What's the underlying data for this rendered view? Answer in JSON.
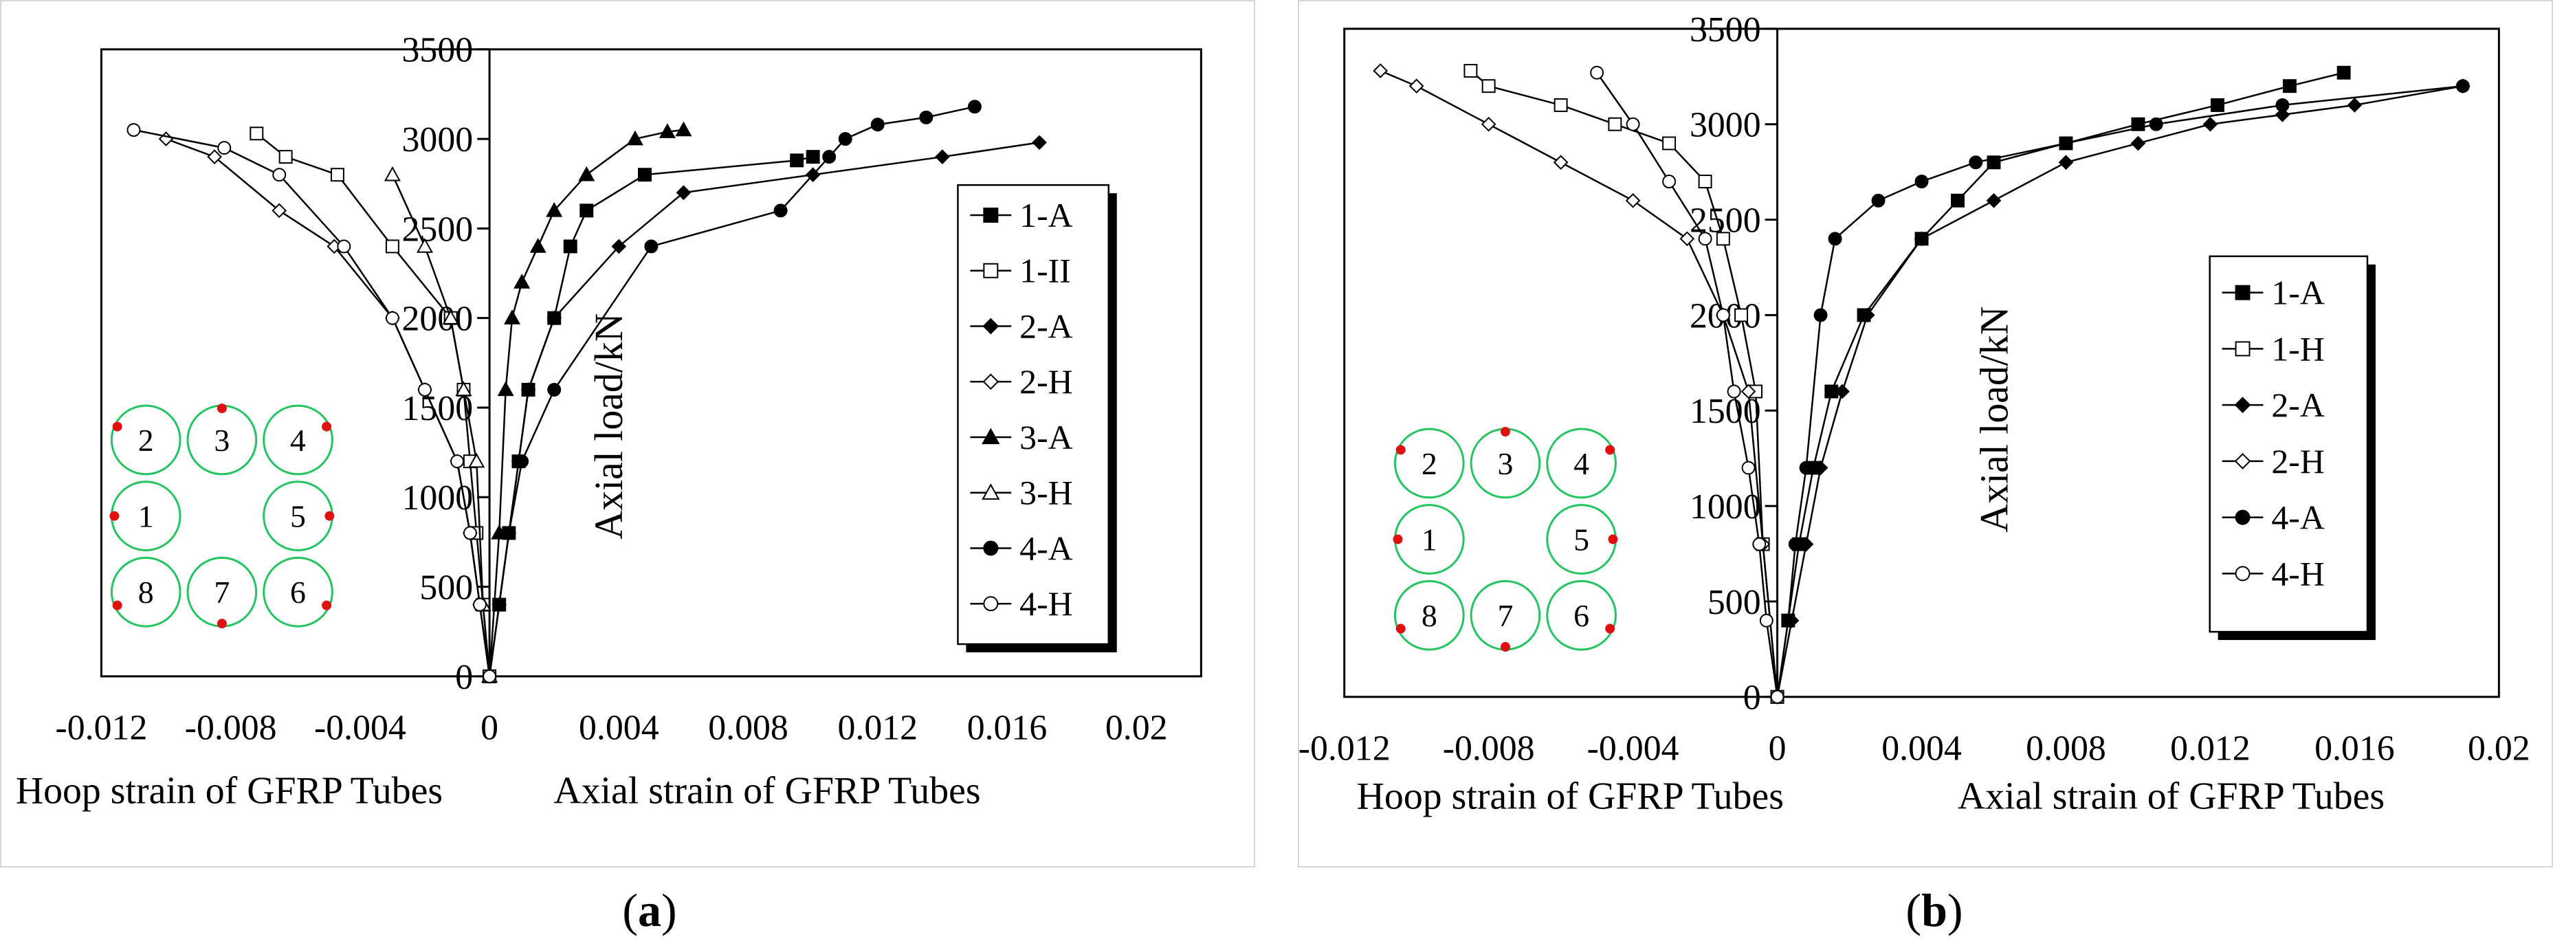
{
  "panels": [
    {
      "caption": "a"
    },
    {
      "caption": "b"
    }
  ],
  "chart_data": [
    {
      "type": "line",
      "ylabel": "Axial load/kN",
      "xlabel_left": "Hoop strain of GFRP Tubes",
      "xlabel_right": "Axial  strain of GFRP Tubes",
      "ylim": [
        0,
        3500
      ],
      "xlim": [
        -0.012,
        0.022
      ],
      "y_ticks": [
        "0",
        "500",
        "1000",
        "1500",
        "2000",
        "2500",
        "3000",
        "3500"
      ],
      "x_ticks": [
        "-0.012",
        "-0.008",
        "-0.004",
        "0",
        "0.004",
        "0.008",
        "0.012",
        "0.016",
        "0.02"
      ],
      "legend_position": "right",
      "grid": false,
      "section_labels": [
        "2",
        "3",
        "4",
        "1",
        "5",
        "8",
        "7",
        "6"
      ],
      "series": [
        {
          "name": "1-A",
          "marker": "square-filled",
          "x": [
            0,
            0.0003,
            0.0006,
            0.0009,
            0.0012,
            0.002,
            0.0025,
            0.003,
            0.0048,
            0.0095,
            0.01
          ],
          "y": [
            0,
            400,
            800,
            1200,
            1600,
            2000,
            2400,
            2600,
            2800,
            2880,
            2900
          ]
        },
        {
          "name": "1-II",
          "marker": "square-open",
          "x": [
            0,
            -0.0002,
            -0.0004,
            -0.0006,
            -0.0008,
            -0.0012,
            -0.003,
            -0.0047,
            -0.0063,
            -0.0072
          ],
          "y": [
            0,
            400,
            800,
            1200,
            1600,
            2000,
            2400,
            2800,
            2900,
            3030
          ]
        },
        {
          "name": "2-A",
          "marker": "diamond-filled",
          "x": [
            0,
            0.0003,
            0.0006,
            0.0009,
            0.0012,
            0.002,
            0.004,
            0.006,
            0.01,
            0.014,
            0.017
          ],
          "y": [
            0,
            400,
            800,
            1200,
            1600,
            2000,
            2400,
            2700,
            2800,
            2900,
            2980
          ]
        },
        {
          "name": "2-H",
          "marker": "diamond-open",
          "x": [
            0,
            -0.0003,
            -0.0006,
            -0.001,
            -0.002,
            -0.003,
            -0.0048,
            -0.0065,
            -0.0085,
            -0.01
          ],
          "y": [
            0,
            400,
            800,
            1200,
            1600,
            2000,
            2400,
            2600,
            2900,
            3000
          ]
        },
        {
          "name": "3-A",
          "marker": "triangle-filled",
          "x": [
            0,
            0.0003,
            0.0005,
            0.0007,
            0.001,
            0.0015,
            0.002,
            0.003,
            0.0045,
            0.0055,
            0.006
          ],
          "y": [
            0,
            800,
            1600,
            2000,
            2200,
            2400,
            2600,
            2800,
            3000,
            3040,
            3050
          ]
        },
        {
          "name": "3-H",
          "marker": "triangle-open",
          "x": [
            0,
            -0.0002,
            -0.0004,
            -0.0008,
            -0.0012,
            -0.002,
            -0.003
          ],
          "y": [
            0,
            400,
            1200,
            1600,
            2000,
            2400,
            2800
          ]
        },
        {
          "name": "4-A",
          "marker": "circle-filled",
          "x": [
            0,
            0.0003,
            0.0006,
            0.001,
            0.002,
            0.005,
            0.009,
            0.0105,
            0.011,
            0.012,
            0.0135,
            0.015
          ],
          "y": [
            0,
            400,
            800,
            1200,
            1600,
            2400,
            2600,
            2900,
            3000,
            3080,
            3120,
            3180
          ]
        },
        {
          "name": "4-H",
          "marker": "circle-open",
          "x": [
            0,
            -0.0003,
            -0.0006,
            -0.001,
            -0.002,
            -0.003,
            -0.0045,
            -0.0065,
            -0.0082,
            -0.011
          ],
          "y": [
            0,
            400,
            800,
            1200,
            1600,
            2000,
            2400,
            2800,
            2950,
            3050
          ]
        }
      ]
    },
    {
      "type": "line",
      "ylabel": "Axial load/kN",
      "xlabel_left": "Hoop strain of GFRP Tubes",
      "xlabel_right": "Axial strain of GFRP Tubes",
      "ylim": [
        0,
        3500
      ],
      "xlim": [
        -0.012,
        0.02
      ],
      "y_ticks": [
        "0",
        "500",
        "1000",
        "1500",
        "2000",
        "2500",
        "3000",
        "3500"
      ],
      "x_ticks": [
        "-0.012",
        "-0.008",
        "-0.004",
        "0",
        "0.004",
        "0.008",
        "0.012",
        "0.016",
        "0.02"
      ],
      "legend_position": "right",
      "grid": false,
      "section_labels": [
        "2",
        "3",
        "4",
        "1",
        "5",
        "8",
        "7",
        "6"
      ],
      "series": [
        {
          "name": "1-A",
          "marker": "square-filled",
          "x": [
            0,
            0.0003,
            0.0006,
            0.001,
            0.0015,
            0.0024,
            0.004,
            0.005,
            0.006,
            0.008,
            0.01,
            0.0122,
            0.0142,
            0.0157
          ],
          "y": [
            0,
            400,
            800,
            1200,
            1600,
            2000,
            2400,
            2600,
            2800,
            2900,
            3000,
            3100,
            3200,
            3270
          ]
        },
        {
          "name": "1-H",
          "marker": "square-open",
          "x": [
            0,
            -0.0004,
            -0.0006,
            -0.001,
            -0.0015,
            -0.002,
            -0.003,
            -0.0045,
            -0.006,
            -0.008,
            -0.0085
          ],
          "y": [
            0,
            800,
            1600,
            2000,
            2400,
            2700,
            2900,
            3000,
            3100,
            3200,
            3280
          ]
        },
        {
          "name": "2-A",
          "marker": "diamond-filled",
          "x": [
            0,
            0.0004,
            0.0008,
            0.0012,
            0.0018,
            0.0025,
            0.004,
            0.006,
            0.008,
            0.01,
            0.012,
            0.014,
            0.016,
            0.019
          ],
          "y": [
            0,
            400,
            800,
            1200,
            1600,
            2000,
            2400,
            2600,
            2800,
            2900,
            3000,
            3050,
            3100,
            3200
          ]
        },
        {
          "name": "2-H",
          "marker": "diamond-open",
          "x": [
            0,
            -0.0004,
            -0.0008,
            -0.0015,
            -0.0025,
            -0.004,
            -0.006,
            -0.008,
            -0.01,
            -0.011
          ],
          "y": [
            0,
            800,
            1600,
            2000,
            2400,
            2600,
            2800,
            3000,
            3200,
            3280
          ]
        },
        {
          "name": "4-A",
          "marker": "circle-filled",
          "x": [
            0,
            0.0003,
            0.0005,
            0.0008,
            0.0012,
            0.0016,
            0.0028,
            0.004,
            0.0055,
            0.008,
            0.0105,
            0.014,
            0.019
          ],
          "y": [
            0,
            400,
            800,
            1200,
            2000,
            2400,
            2600,
            2700,
            2800,
            2900,
            3000,
            3100,
            3200
          ]
        },
        {
          "name": "4-H",
          "marker": "circle-open",
          "x": [
            0,
            -0.0003,
            -0.0005,
            -0.0008,
            -0.0012,
            -0.0015,
            -0.002,
            -0.003,
            -0.004,
            -0.005
          ],
          "y": [
            0,
            400,
            800,
            1200,
            1600,
            2000,
            2400,
            2700,
            3000,
            3270
          ]
        }
      ]
    }
  ]
}
